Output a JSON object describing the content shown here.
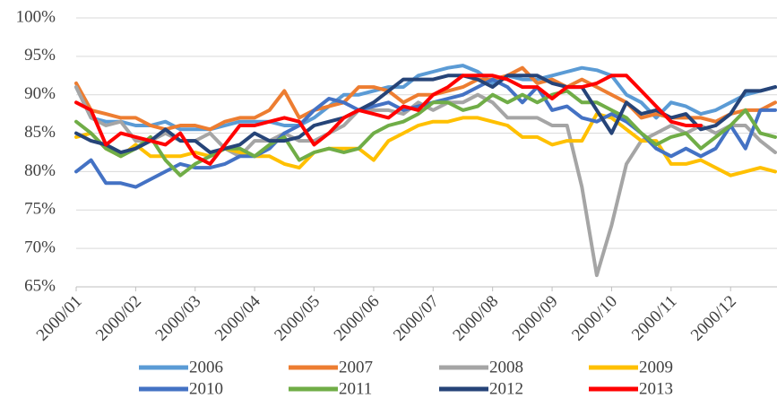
{
  "chart_data": {
    "type": "line",
    "categories": [
      "2000/01",
      null,
      null,
      null,
      "2000/02",
      null,
      null,
      null,
      "2000/03",
      null,
      null,
      null,
      "2000/04",
      null,
      null,
      null,
      "2000/05",
      null,
      null,
      null,
      "2000/06",
      null,
      null,
      null,
      "2000/07",
      null,
      null,
      null,
      "2000/08",
      null,
      null,
      null,
      "2000/09",
      null,
      null,
      null,
      "2000/10",
      null,
      null,
      null,
      "2000/11",
      null,
      null,
      null,
      "2000/12",
      null,
      null,
      null
    ],
    "ylim": [
      65,
      100
    ],
    "yticks": [
      {
        "value": 65,
        "label": "65%"
      },
      {
        "value": 70,
        "label": "70%"
      },
      {
        "value": 75,
        "label": "75%"
      },
      {
        "value": 80,
        "label": "80%"
      },
      {
        "value": 85,
        "label": "85%"
      },
      {
        "value": 90,
        "label": "90%"
      },
      {
        "value": 95,
        "label": "95%"
      },
      {
        "value": 100,
        "label": "100%"
      }
    ],
    "grid": true,
    "legend": "bottom",
    "series": [
      {
        "name": "2006",
        "color": "#5b9bd5",
        "values": [
          91,
          87,
          86.5,
          86.5,
          86,
          86,
          86.5,
          85.5,
          85.5,
          85.5,
          86,
          86.5,
          86.5,
          86.5,
          86,
          86,
          87,
          88.5,
          90,
          90,
          90.5,
          91,
          91,
          92.5,
          93,
          93.5,
          93.8,
          93,
          91.5,
          92.5,
          92,
          92,
          92.5,
          93,
          93.5,
          93.2,
          92.5,
          90,
          89,
          87,
          89,
          88.5,
          87.5,
          88,
          89,
          90,
          90.5,
          91
        ]
      },
      {
        "name": "2007",
        "color": "#ed7d31",
        "values": [
          91.5,
          88,
          87.5,
          87,
          87,
          86,
          85.5,
          86,
          86,
          85.5,
          86.5,
          87,
          87,
          88,
          90.5,
          87,
          88,
          88.5,
          89,
          91,
          91,
          90.5,
          89,
          90,
          90,
          90.5,
          91,
          92,
          92,
          92.5,
          93.5,
          91.5,
          92,
          91,
          92,
          91,
          90,
          89,
          87,
          87.5,
          87,
          87,
          87,
          86.5,
          87.5,
          88,
          88,
          89
        ]
      },
      {
        "name": "2008",
        "color": "#a5a5a5",
        "values": [
          91,
          87,
          86,
          86.5,
          84,
          84,
          85,
          84,
          84,
          85,
          83,
          82,
          84,
          84,
          85,
          84,
          84,
          85,
          86,
          88,
          88,
          88,
          87.5,
          89,
          88,
          89,
          89,
          90,
          89,
          87,
          87,
          87,
          86,
          86,
          78,
          66.5,
          73,
          81,
          84,
          85,
          86,
          85,
          86,
          85,
          86,
          86,
          84,
          82.5
        ]
      },
      {
        "name": "2009",
        "color": "#ffc000",
        "values": [
          84.5,
          85,
          83,
          82,
          83.5,
          82,
          82,
          82,
          82.5,
          82,
          83,
          82.5,
          82,
          82,
          81,
          80.5,
          82.5,
          83,
          83,
          83,
          81.5,
          84,
          85,
          86,
          86.5,
          86.5,
          87,
          87,
          86.5,
          86,
          84.5,
          84.5,
          83.5,
          84,
          84,
          87.5,
          87,
          85.5,
          84,
          84,
          81,
          81,
          81.5,
          80.5,
          79.5,
          80,
          80.5,
          80
        ]
      },
      {
        "name": "2010",
        "color": "#4472c4",
        "values": [
          80,
          81.5,
          78.5,
          78.5,
          78,
          79,
          80,
          81,
          80.5,
          80.5,
          81,
          82,
          82,
          83,
          85,
          86,
          88,
          89.5,
          89,
          88,
          88.5,
          89,
          88,
          88.5,
          89,
          89.5,
          90,
          91,
          92,
          91,
          89,
          91,
          88,
          88.5,
          87,
          86.5,
          87.5,
          86.5,
          85,
          83,
          82,
          83,
          82,
          83,
          86,
          83,
          88,
          88
        ]
      },
      {
        "name": "2011",
        "color": "#70ad47",
        "values": [
          86.5,
          85,
          83,
          82,
          83,
          84.5,
          81.5,
          79.5,
          81,
          82,
          83,
          83,
          82,
          83.5,
          84.5,
          81.5,
          82.5,
          83,
          82.5,
          83,
          85,
          86,
          86.5,
          87.5,
          89,
          89,
          88,
          88.5,
          90,
          89,
          90,
          89,
          90,
          90.5,
          89,
          89,
          88,
          87,
          85,
          83.5,
          84.5,
          85,
          83,
          84.5,
          86,
          88,
          85,
          84.5
        ]
      },
      {
        "name": "2012",
        "color": "#264478",
        "values": [
          85,
          84,
          83.5,
          82.5,
          83,
          84,
          85.5,
          84,
          84,
          82.5,
          83,
          83.5,
          85,
          84,
          84,
          84.5,
          86,
          86.5,
          87,
          88,
          89,
          90.5,
          92,
          92,
          92,
          92.5,
          92.5,
          92,
          91,
          92.5,
          92.5,
          92.5,
          91.5,
          91,
          91,
          88,
          85,
          89,
          87.5,
          88,
          87,
          87.5,
          85.5,
          86,
          87.5,
          90.5,
          90.5,
          91
        ]
      },
      {
        "name": "2013",
        "color": "#ff0000",
        "values": [
          89,
          88,
          83.5,
          85,
          84.5,
          84,
          83.5,
          85,
          82,
          81,
          83.5,
          86,
          86,
          86.5,
          87,
          86.5,
          83.5,
          85,
          87,
          88,
          87.5,
          87,
          88.5,
          88,
          90,
          91,
          92.5,
          92.5,
          92.5,
          92,
          91,
          91,
          89.5,
          91,
          91,
          91.5,
          92.5,
          92.5,
          90.5,
          88.5,
          86.5,
          86,
          86,
          null,
          null,
          null,
          null,
          null
        ]
      }
    ]
  }
}
